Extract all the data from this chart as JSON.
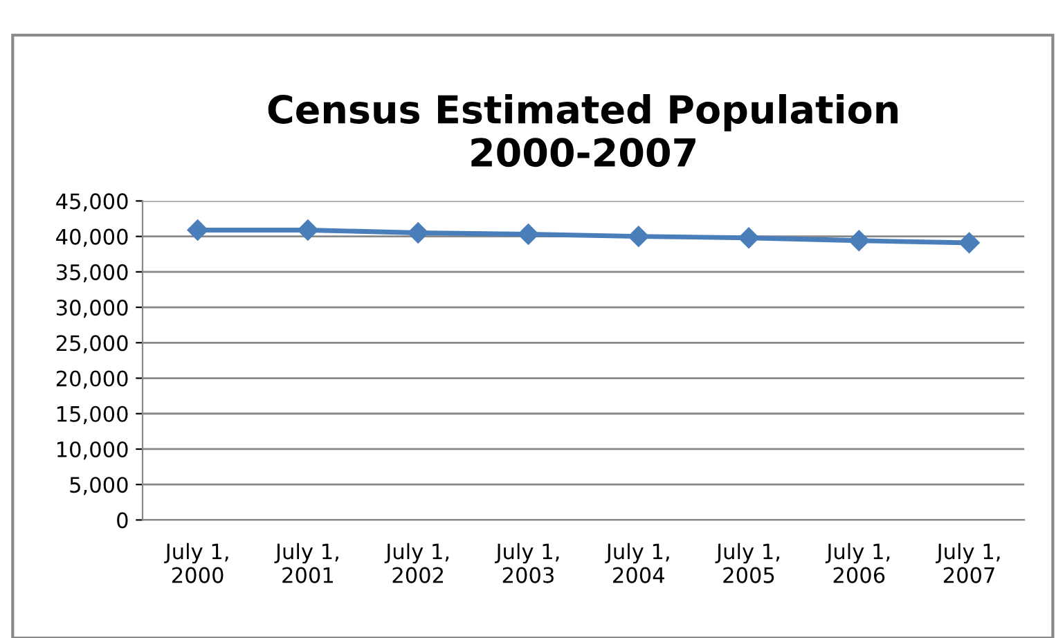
{
  "chart_data": {
    "type": "line",
    "title": "Census Estimated Population\n2000-2007",
    "categories": [
      "July 1,\n2000",
      "July 1,\n2001",
      "July 1,\n2002",
      "July 1,\n2003",
      "July 1,\n2004",
      "July 1,\n2005",
      "July 1,\n2006",
      "July 1,\n2007"
    ],
    "series": [
      {
        "color": "#4a7ebb",
        "values": [
          40900,
          40900,
          40500,
          40300,
          40000,
          39800,
          39400,
          39100
        ]
      }
    ],
    "ylim": [
      0,
      45000
    ],
    "yticks": [
      {
        "value": 0,
        "label": "0"
      },
      {
        "value": 5000,
        "label": "5,000"
      },
      {
        "value": 10000,
        "label": "10,000"
      },
      {
        "value": 15000,
        "label": "15,000"
      },
      {
        "value": 20000,
        "label": "20,000"
      },
      {
        "value": 25000,
        "label": "25,000"
      },
      {
        "value": 30000,
        "label": "30,000"
      },
      {
        "value": 35000,
        "label": "35,000"
      },
      {
        "value": 40000,
        "label": "40,000"
      },
      {
        "value": 45000,
        "label": "45,000"
      }
    ],
    "grid": "y",
    "marker": "diamond",
    "line_style": "solid",
    "legend": false
  }
}
